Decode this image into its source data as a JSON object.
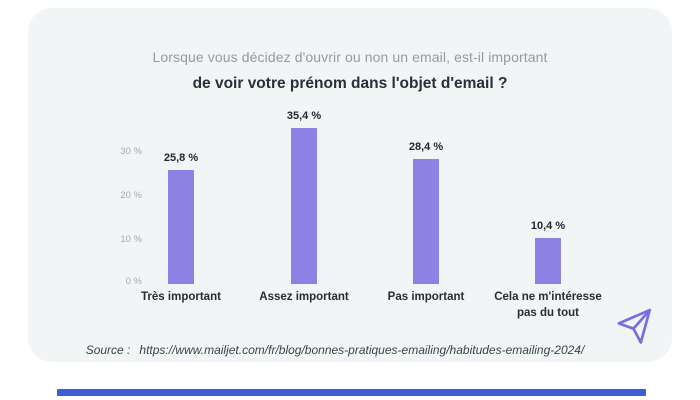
{
  "title": {
    "line1": "Lorsque vous décidez d'ouvrir ou non un email, est-il important",
    "line2": "de voir votre prénom dans l'objet d'email ?"
  },
  "chart_data": {
    "type": "bar",
    "title": "Lorsque vous décidez d'ouvrir ou non un email, est-il important de voir votre prénom dans l'objet d'email ?",
    "categories": [
      "Très important",
      "Assez important",
      "Pas important",
      "Cela ne m'intéresse pas du tout"
    ],
    "values": [
      25.8,
      35.4,
      28.4,
      10.4
    ],
    "value_labels": [
      "25,8 %",
      "35,4 %",
      "28,4 %",
      "10,4 %"
    ],
    "unit": "%",
    "y_ticks": [
      "0 %",
      "10 %",
      "20 %",
      "30 %"
    ],
    "ylim": [
      0,
      38
    ],
    "grid": false,
    "legend": false,
    "bar_color": "#8f80e6"
  },
  "source": {
    "label": "Source :",
    "url": "https://www.mailjet.com/fr/blog/bonnes-pratiques-emailing/habitudes-emailing-2024/"
  },
  "icons": {
    "send_icon": "paper-plane-send"
  },
  "colors": {
    "panel_background": "#f1f5f6",
    "bar": "#8f80e6",
    "accent_bottom_bar": "#3e5ed8",
    "icon_stroke": "#7b6ce0"
  }
}
